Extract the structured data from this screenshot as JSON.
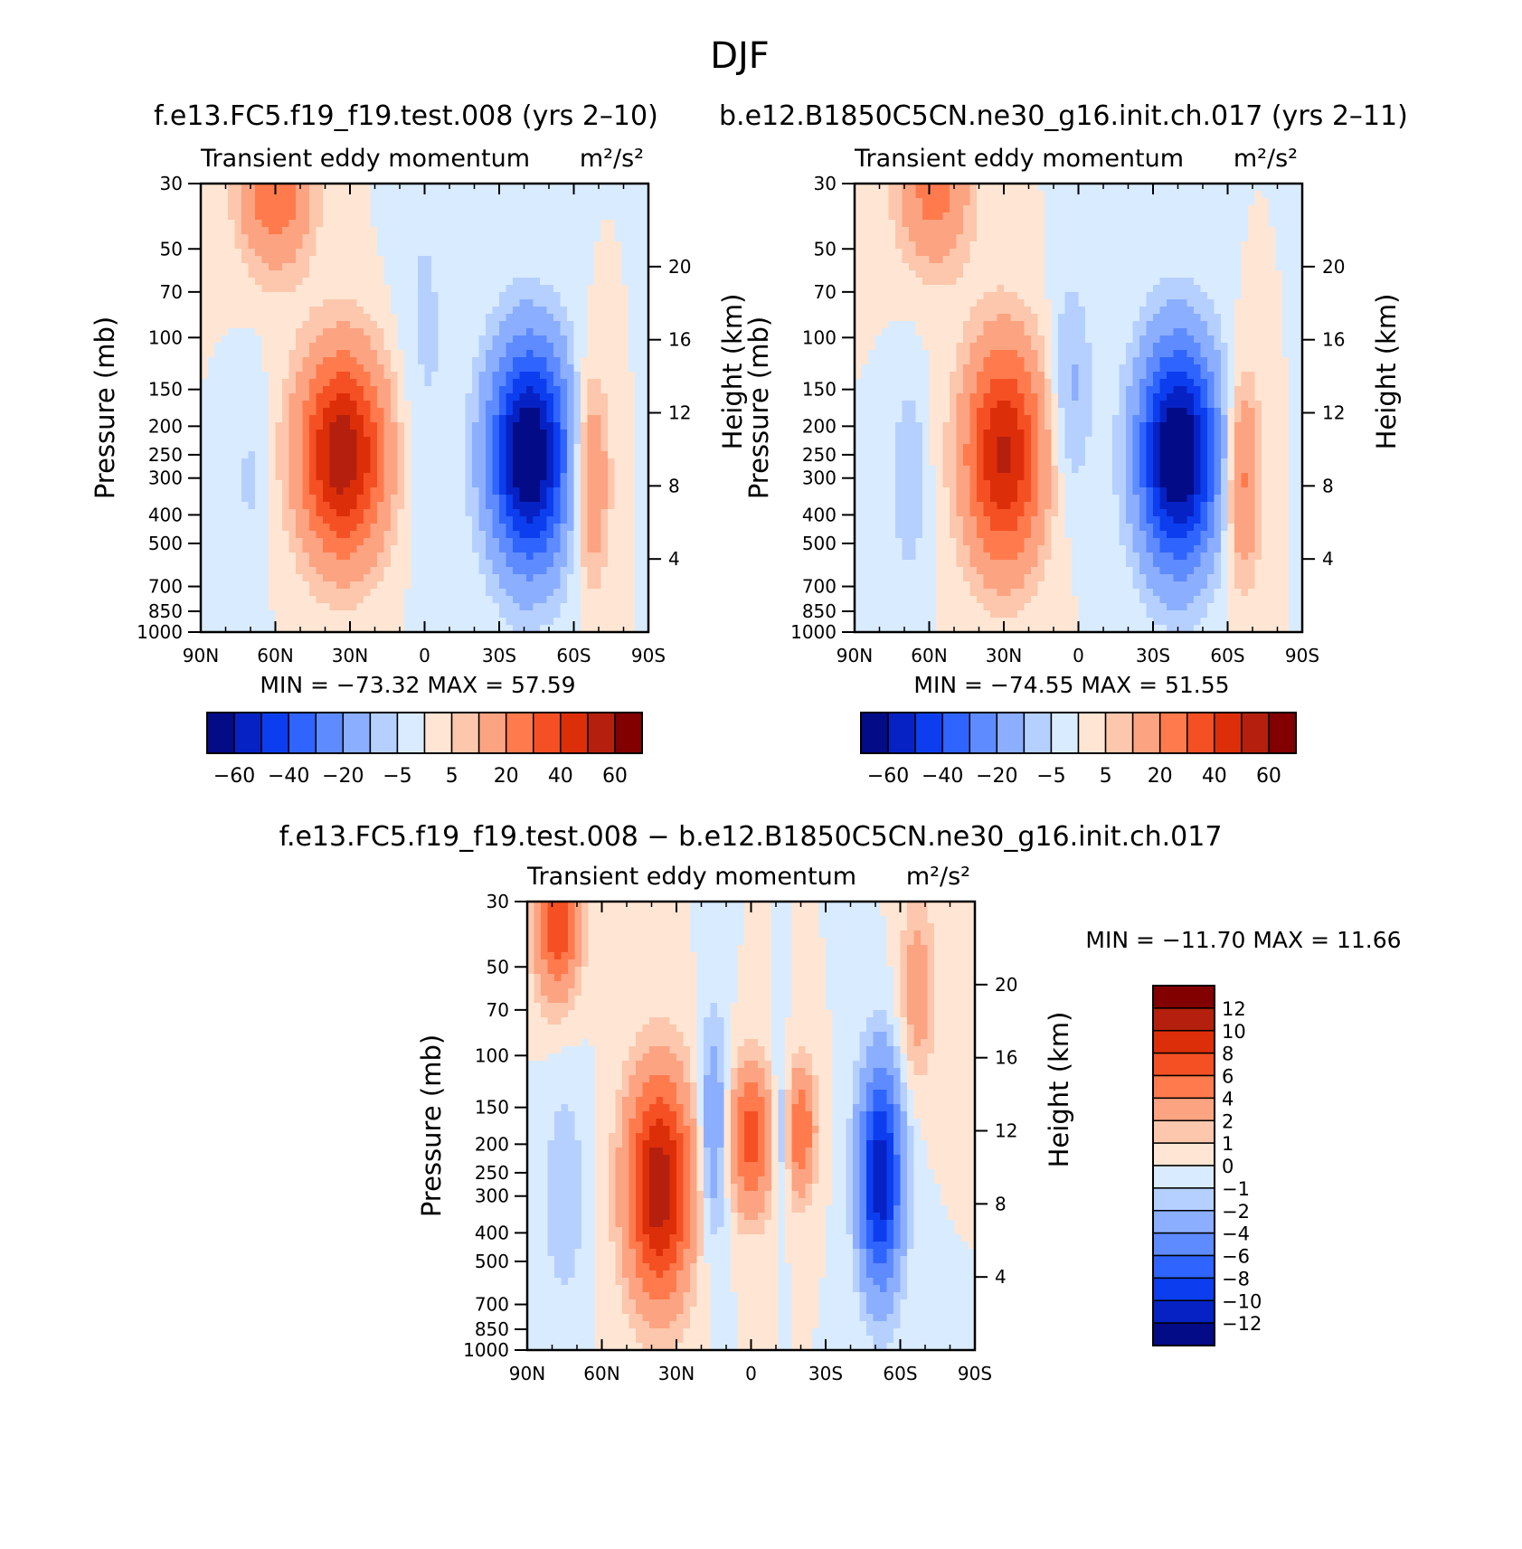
{
  "page_title": "DJF",
  "colors": {
    "pos": [
      "#ffe6d4",
      "#fcc7ac",
      "#fca382",
      "#ff7b4d",
      "#f55024",
      "#dd2e0a",
      "#b4200d",
      "#820000"
    ],
    "neg": [
      "#d9ebff",
      "#b5d0ff",
      "#8caeff",
      "#5e8bff",
      "#2f64ff",
      "#0c3ef0",
      "#0722c4",
      "#030b87"
    ],
    "frame": "#000000"
  },
  "panels": [
    {
      "id": "model",
      "header": "f.e13.FC5.f19_f19.test.008 (yrs 2–10)",
      "minmax": "MIN =  −73.32   MAX =   57.59",
      "chart_data": {
        "type": "contour",
        "title": "Transient eddy momentum",
        "units": "m²/s²",
        "xlabel": "",
        "ylabel": "Pressure (mb)",
        "ylabel_right": "Height (km)",
        "x_ticks": [
          "90N",
          "60N",
          "30N",
          "0",
          "30S",
          "60S",
          "90S"
        ],
        "y_ticks": [
          "30",
          "50",
          "70",
          "100",
          "150",
          "200",
          "250",
          "300",
          "400",
          "500",
          "700",
          "850",
          "1000"
        ],
        "height_ticks": [
          "20",
          "16",
          "12",
          "8",
          "4"
        ],
        "min": -73.32,
        "max": 57.59,
        "features": [
          {
            "lat": 33,
            "p": 250,
            "peak": 57.59,
            "sigma_lat": 12,
            "sigma_logp": 0.55
          },
          {
            "lat": 60,
            "p": 30,
            "peak": 30,
            "sigma_lat": 10,
            "sigma_logp": 0.45
          },
          {
            "lat": -42,
            "p": 250,
            "peak": -73.32,
            "sigma_lat": 11,
            "sigma_logp": 0.6
          },
          {
            "lat": -67,
            "p": 300,
            "peak": 22,
            "sigma_lat": 5,
            "sigma_logp": 0.55
          },
          {
            "lat": 70,
            "p": 300,
            "peak": -6,
            "sigma_lat": 5,
            "sigma_logp": 0.6
          },
          {
            "lat": 0,
            "p": 100,
            "peak": -6,
            "sigma_lat": 8,
            "sigma_logp": 1.1
          }
        ],
        "colorbar": {
          "tick_labels": [
            "−60",
            "−40",
            "−20",
            "−5",
            "5",
            "20",
            "40",
            "60"
          ]
        }
      }
    },
    {
      "id": "obs",
      "header": "b.e12.B1850C5CN.ne30_g16.init.ch.017 (yrs 2–11)",
      "minmax": "MIN =  −74.55   MAX =   51.55",
      "chart_data": {
        "type": "contour",
        "title": "Transient eddy momentum",
        "units": "m²/s²",
        "xlabel": "",
        "ylabel": "Pressure (mb)",
        "ylabel_right": "Height (km)",
        "x_ticks": [
          "90N",
          "60N",
          "30N",
          "0",
          "30S",
          "60S",
          "90S"
        ],
        "y_ticks": [
          "30",
          "50",
          "70",
          "100",
          "150",
          "200",
          "250",
          "300",
          "400",
          "500",
          "700",
          "850",
          "1000"
        ],
        "height_ticks": [
          "20",
          "16",
          "12",
          "8",
          "4"
        ],
        "min": -74.55,
        "max": 51.55,
        "features": [
          {
            "lat": 30,
            "p": 250,
            "peak": 51.55,
            "sigma_lat": 11,
            "sigma_logp": 0.6
          },
          {
            "lat": 58,
            "p": 30,
            "peak": 25,
            "sigma_lat": 10,
            "sigma_logp": 0.45
          },
          {
            "lat": -40,
            "p": 250,
            "peak": -74.55,
            "sigma_lat": 11,
            "sigma_logp": 0.6
          },
          {
            "lat": -66,
            "p": 300,
            "peak": 24,
            "sigma_lat": 5,
            "sigma_logp": 0.55
          },
          {
            "lat": 68,
            "p": 300,
            "peak": -10,
            "sigma_lat": 5,
            "sigma_logp": 0.55
          },
          {
            "lat": 3,
            "p": 150,
            "peak": -12,
            "sigma_lat": 6,
            "sigma_logp": 0.6
          }
        ],
        "colorbar": {
          "tick_labels": [
            "−60",
            "−40",
            "−20",
            "−5",
            "5",
            "20",
            "40",
            "60"
          ]
        }
      }
    },
    {
      "id": "diff",
      "header": "f.e13.FC5.f19_f19.test.008 − b.e12.B1850C5CN.ne30_g16.init.ch.017",
      "minmax": "MIN =  −11.70   MAX =   11.66",
      "chart_data": {
        "type": "contour",
        "title": "Transient eddy momentum",
        "units": "m²/s²",
        "xlabel": "",
        "ylabel": "Pressure (mb)",
        "ylabel_right": "Height (km)",
        "x_ticks": [
          "90N",
          "60N",
          "30N",
          "0",
          "30S",
          "60S",
          "90S"
        ],
        "y_ticks": [
          "30",
          "50",
          "70",
          "100",
          "150",
          "200",
          "250",
          "300",
          "400",
          "500",
          "700",
          "850",
          "1000"
        ],
        "height_ticks": [
          "20",
          "16",
          "12",
          "8",
          "4"
        ],
        "min": -11.7,
        "max": 11.66,
        "features": [
          {
            "lat": 37,
            "p": 280,
            "peak": 11.66,
            "sigma_lat": 9,
            "sigma_logp": 0.6
          },
          {
            "lat": 78,
            "p": 35,
            "peak": 8,
            "sigma_lat": 6,
            "sigma_logp": 0.4
          },
          {
            "lat": 0,
            "p": 190,
            "peak": 7,
            "sigma_lat": 6,
            "sigma_logp": 0.4
          },
          {
            "lat": -20,
            "p": 180,
            "peak": 6,
            "sigma_lat": 4,
            "sigma_logp": 0.35
          },
          {
            "lat": -52,
            "p": 260,
            "peak": -11.7,
            "sigma_lat": 6,
            "sigma_logp": 0.6
          },
          {
            "lat": 15,
            "p": 180,
            "peak": -4,
            "sigma_lat": 4,
            "sigma_logp": 0.6
          },
          {
            "lat": -12,
            "p": 180,
            "peak": -3,
            "sigma_lat": 2.5,
            "sigma_logp": 0.4
          },
          {
            "lat": -67,
            "p": 60,
            "peak": 3,
            "sigma_lat": 5,
            "sigma_logp": 0.5
          },
          {
            "lat": 75,
            "p": 300,
            "peak": -2,
            "sigma_lat": 6,
            "sigma_logp": 0.6
          }
        ],
        "colorbar": {
          "tick_labels": [
            "12",
            "10",
            "8",
            "6",
            "4",
            "2",
            "1",
            "0",
            "−1",
            "−2",
            "−4",
            "−6",
            "−8",
            "−10",
            "−12"
          ]
        }
      }
    }
  ]
}
